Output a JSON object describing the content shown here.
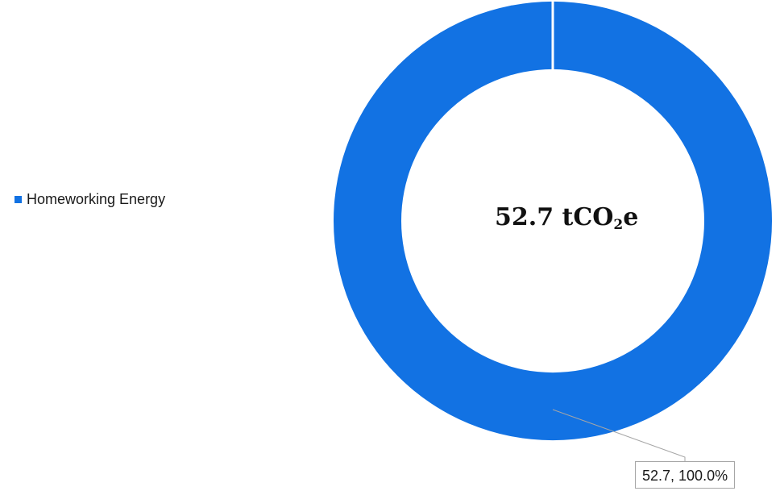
{
  "chart_data": {
    "type": "pie",
    "donut": true,
    "categories": [
      "Homeworking Energy"
    ],
    "values": [
      52.7
    ],
    "percentages": [
      100.0
    ],
    "colors": [
      "#1272e3"
    ],
    "legend_position": "left",
    "center_label": {
      "value": "52.7",
      "unit_prefix": "tCO",
      "unit_subscript": "2",
      "unit_suffix": "e"
    },
    "data_labels": [
      "52.7, 100.0%"
    ]
  }
}
